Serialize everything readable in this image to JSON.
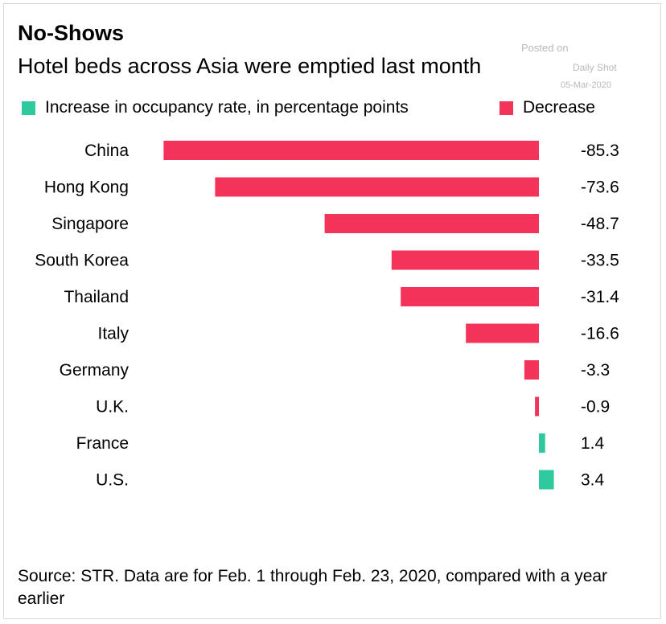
{
  "chart_data": {
    "type": "bar",
    "orientation": "horizontal",
    "title": "No-Shows",
    "subtitle": "Hotel beds across Asia were emptied last month",
    "categories": [
      "China",
      "Hong Kong",
      "Singapore",
      "South Korea",
      "Thailand",
      "Italy",
      "Germany",
      "U.K.",
      "France",
      "U.S."
    ],
    "values": [
      -85.3,
      -73.6,
      -48.7,
      -33.5,
      -31.4,
      -16.6,
      -3.3,
      -0.9,
      1.4,
      3.4
    ],
    "value_labels": [
      "-85.3",
      "-73.6",
      "-48.7",
      "-33.5",
      "-31.4",
      "-16.6",
      "-3.3",
      "-0.9",
      "1.4",
      "3.4"
    ],
    "legend": [
      {
        "label": "Increase in occupancy rate, in percentage points",
        "color": "#2ec99e"
      },
      {
        "label": "Decrease",
        "color": "#f4335a"
      }
    ],
    "xlim": [
      -90,
      5
    ],
    "xlabel": "",
    "ylabel": "",
    "grid": false,
    "source": "Source: STR. Data are for Feb. 1 through Feb. 23, 2020, compared with a year earlier"
  },
  "watermark": {
    "posted_on": "Posted on",
    "publisher": "Daily Shot",
    "date": "05-Mar-2020"
  },
  "colors": {
    "increase": "#2ec99e",
    "decrease": "#f4335a"
  }
}
